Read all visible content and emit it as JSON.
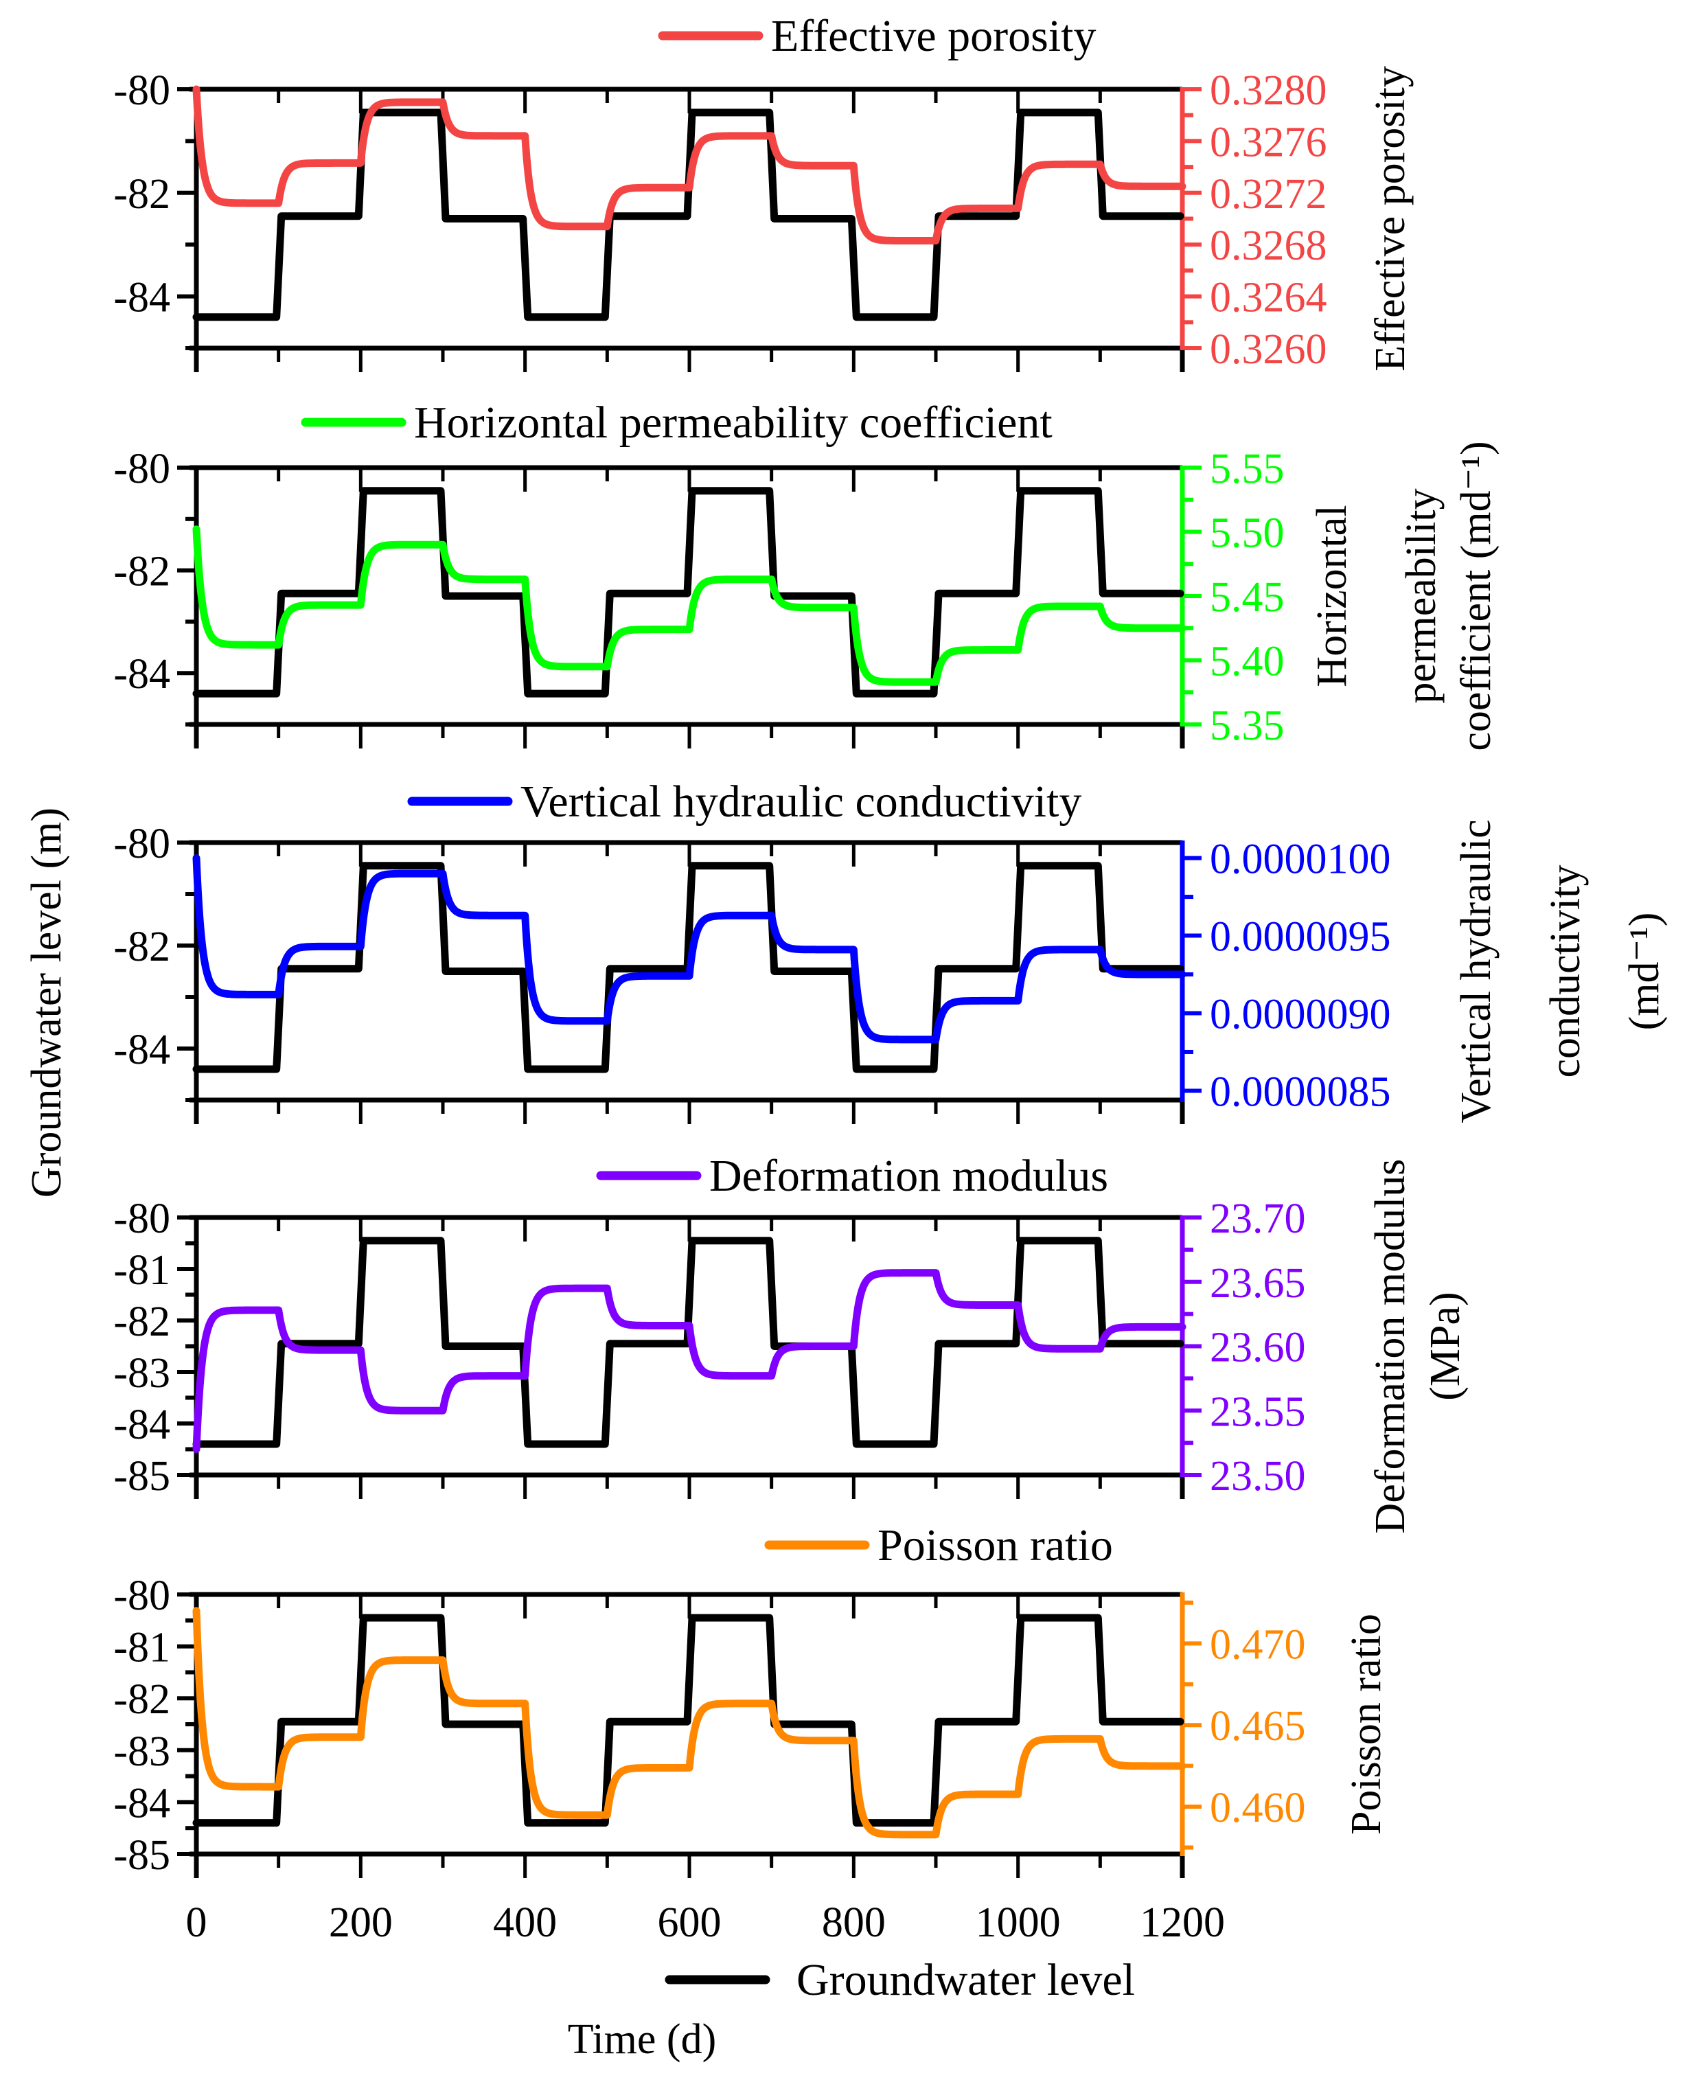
{
  "chart_data": {
    "type": "line",
    "layout": "five stacked panels sharing x-axis, each with dual y-axes",
    "x": {
      "label": "Time (d)",
      "range": [
        0,
        1200
      ],
      "ticks": [
        0,
        200,
        400,
        600,
        800,
        1000,
        1200
      ],
      "tick_labels": [
        "0",
        "200",
        "400",
        "600",
        "800",
        "1000",
        "1200"
      ],
      "minor_step": 100
    },
    "left_axis_label": "Groundwater level (m)",
    "groundwater": {
      "name": "Groundwater level",
      "color": "#000000",
      "legend_position": "bottom-center",
      "steps": [
        {
          "start": 0,
          "end": 100,
          "value": -84.4
        },
        {
          "start": 100,
          "end": 200,
          "value": -82.45
        },
        {
          "start": 200,
          "end": 300,
          "value": -80.45
        },
        {
          "start": 300,
          "end": 400,
          "value": -82.5
        },
        {
          "start": 400,
          "end": 500,
          "value": -84.4
        },
        {
          "start": 500,
          "end": 600,
          "value": -82.45
        },
        {
          "start": 600,
          "end": 700,
          "value": -80.45
        },
        {
          "start": 700,
          "end": 800,
          "value": -82.5
        },
        {
          "start": 800,
          "end": 900,
          "value": -84.4
        },
        {
          "start": 900,
          "end": 1000,
          "value": -82.45
        },
        {
          "start": 1000,
          "end": 1100,
          "value": -80.45
        },
        {
          "start": 1100,
          "end": 1200,
          "value": -82.45
        }
      ]
    },
    "panels": [
      {
        "name": "Effective porosity",
        "legend": "Effective porosity",
        "color": "#F44545",
        "left_range": [
          -85,
          -80
        ],
        "left_ticks": [
          -80,
          -82,
          -84
        ],
        "left_tick_labels": [
          "-80",
          "-82",
          "-84"
        ],
        "left_minor": [
          -81,
          -83,
          -85
        ],
        "right_label_lines": [
          "Effective porosity"
        ],
        "right_range": [
          0.326,
          0.328
        ],
        "right_ticks": [
          0.328,
          0.3276,
          0.3272,
          0.3268,
          0.3264,
          0.326
        ],
        "right_tick_labels": [
          "0.3280",
          "0.3276",
          "0.3272",
          "0.3268",
          "0.3264",
          "0.3260"
        ],
        "right_minor_step": 0.0002,
        "initial": 0.328,
        "levels": [
          0.32712,
          0.32743,
          0.3279,
          0.32764,
          0.32694,
          0.32724,
          0.32764,
          0.32741,
          0.32683,
          0.32708,
          0.32742,
          0.32725
        ]
      },
      {
        "name": "Horizontal permeability coefficient",
        "legend": "Horizontal permeability coefficient",
        "color": "#00FF00",
        "left_range": [
          -85,
          -80
        ],
        "left_ticks": [
          -80,
          -82,
          -84
        ],
        "left_tick_labels": [
          "-80",
          "-82",
          "-84"
        ],
        "left_minor": [
          -81,
          -83,
          -85
        ],
        "right_label_lines": [
          "Horizontal",
          "permeability",
          "coefficient (md⁻¹)"
        ],
        "right_range": [
          5.35,
          5.55
        ],
        "right_ticks": [
          5.55,
          5.5,
          5.45,
          5.4,
          5.35
        ],
        "right_tick_labels": [
          "5.55",
          "5.50",
          "5.45",
          "5.40",
          "5.35"
        ],
        "right_minor_step": 0.025,
        "initial": 5.502,
        "levels": [
          5.412,
          5.443,
          5.49,
          5.463,
          5.395,
          5.424,
          5.463,
          5.441,
          5.383,
          5.408,
          5.442,
          5.425
        ]
      },
      {
        "name": "Vertical hydraulic conductivity",
        "legend": "Vertical hydraulic conductivity",
        "color": "#0000FF",
        "left_range": [
          -85,
          -80
        ],
        "left_ticks": [
          -80,
          -82,
          -84
        ],
        "left_tick_labels": [
          "-80",
          "-82",
          "-84"
        ],
        "left_minor": [
          -81,
          -83,
          -85
        ],
        "right_label_lines": [
          "Vertical hydraulic",
          "conductivity",
          "(md⁻¹)"
        ],
        "right_range": [
          8.44e-06,
          1.01e-05
        ],
        "right_ticks": [
          1e-05,
          9.5e-06,
          9e-06,
          8.5e-06
        ],
        "right_tick_labels": [
          "0.0000100",
          "0.0000095",
          "0.0000090",
          "0.0000085"
        ],
        "right_minor_step": 2.5e-07,
        "initial": 1e-05,
        "levels": [
          9.12e-06,
          9.43e-06,
          9.9e-06,
          9.63e-06,
          8.95e-06,
          9.24e-06,
          9.63e-06,
          9.41e-06,
          8.83e-06,
          9.08e-06,
          9.41e-06,
          9.25e-06
        ]
      },
      {
        "name": "Deformation modulus",
        "legend": "Deformation modulus",
        "color": "#8000FF",
        "left_range": [
          -85,
          -80
        ],
        "left_ticks": [
          -80,
          -81,
          -82,
          -83,
          -84,
          -85
        ],
        "left_tick_labels": [
          "-80",
          "-81",
          "-82",
          "-83",
          "-84",
          "-85"
        ],
        "left_minor": [
          -80.5,
          -81.5,
          -82.5,
          -83.5,
          -84.5
        ],
        "right_label_lines": [
          "Deformation modulus",
          "(MPa)"
        ],
        "right_range": [
          23.5,
          23.7
        ],
        "right_ticks": [
          23.7,
          23.65,
          23.6,
          23.55,
          23.5
        ],
        "right_tick_labels": [
          "23.70",
          "23.65",
          "23.60",
          "23.55",
          "23.50"
        ],
        "right_minor_step": 0.025,
        "initial": 23.52,
        "levels": [
          23.628,
          23.597,
          23.55,
          23.577,
          23.645,
          23.616,
          23.577,
          23.6,
          23.657,
          23.632,
          23.598,
          23.615
        ]
      },
      {
        "name": "Poisson ratio",
        "legend": "Poisson ratio",
        "color": "#FF8800",
        "left_range": [
          -85,
          -80
        ],
        "left_ticks": [
          -80,
          -81,
          -82,
          -83,
          -84,
          -85
        ],
        "left_tick_labels": [
          "-80",
          "-81",
          "-82",
          "-83",
          "-84",
          "-85"
        ],
        "left_minor": [
          -80.5,
          -81.5,
          -82.5,
          -83.5,
          -84.5
        ],
        "right_label_lines": [
          "Poisson ratio"
        ],
        "right_range": [
          0.4571,
          0.473
        ],
        "right_ticks": [
          0.47,
          0.465,
          0.46
        ],
        "right_tick_labels": [
          "0.470",
          "0.465",
          "0.460"
        ],
        "right_minor_step": 0.0025,
        "initial": 0.472,
        "levels": [
          0.46122,
          0.46426,
          0.46898,
          0.46632,
          0.45949,
          0.46238,
          0.46632,
          0.46405,
          0.45829,
          0.46076,
          0.46415,
          0.46249
        ]
      }
    ],
    "grid": false
  }
}
